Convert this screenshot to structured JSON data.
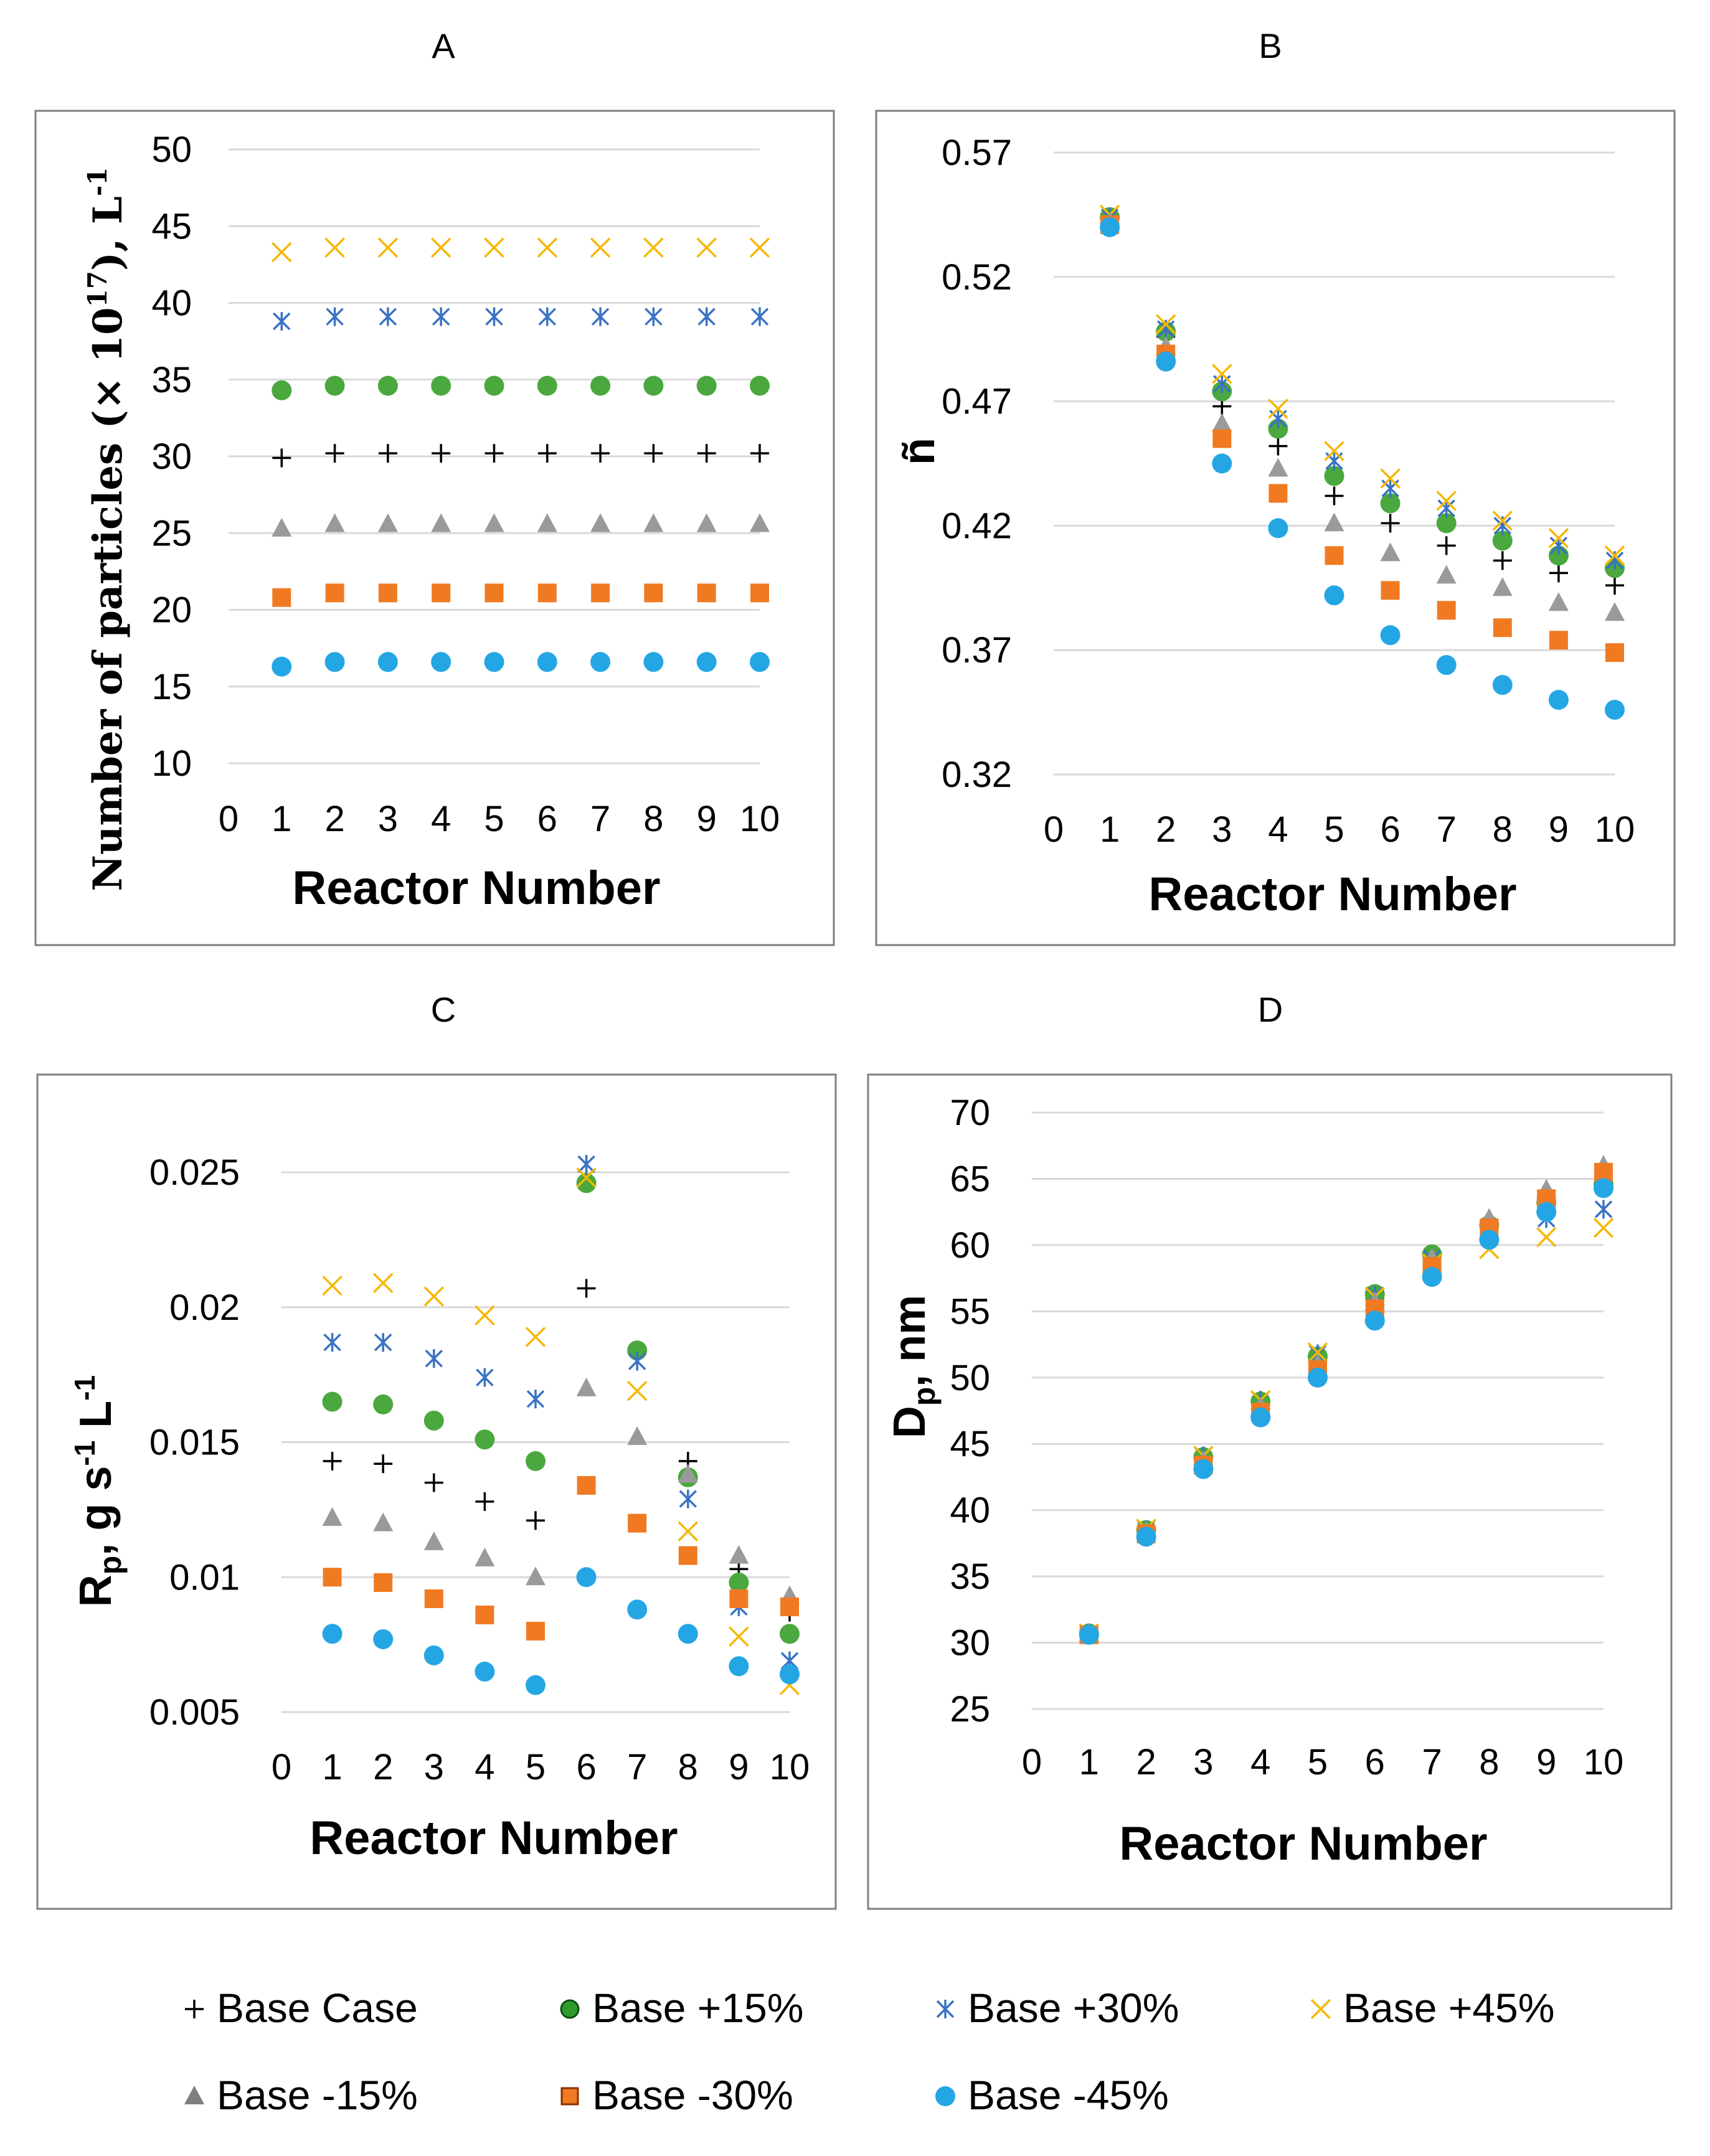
{
  "series_styles": [
    {
      "name": "Base Case",
      "marker": "plus",
      "color": "#000000"
    },
    {
      "name": "Base +15%",
      "marker": "circle",
      "color": "#4aa83e"
    },
    {
      "name": "Base +30%",
      "marker": "star",
      "color": "#3a72c4"
    },
    {
      "name": "Base +45%",
      "marker": "x",
      "color": "#f5b800"
    },
    {
      "name": "Base -15%",
      "marker": "triangle",
      "color": "#9a9a9a"
    },
    {
      "name": "Base -30%",
      "marker": "square",
      "color": "#f07a22"
    },
    {
      "name": "Base -45%",
      "marker": "circle",
      "color": "#25a6e4"
    }
  ],
  "legend": {
    "items": [
      {
        "label": "Base Case",
        "marker": "plus",
        "color": "#000000"
      },
      {
        "label": "Base +15%",
        "marker": "circle-dark",
        "color": "#2e9a2b"
      },
      {
        "label": "Base +30%",
        "marker": "star",
        "color": "#3a72c4"
      },
      {
        "label": "Base +45%",
        "marker": "x",
        "color": "#f5b800"
      },
      {
        "label": "Base -15%",
        "marker": "triangle",
        "color": "#7f7f7f"
      },
      {
        "label": "Base -30%",
        "marker": "square-outlined",
        "color": "#f07a22"
      },
      {
        "label": "Base -45%",
        "marker": "circle",
        "color": "#25a6e4"
      }
    ]
  },
  "chart_data": [
    {
      "id": "A",
      "type": "scatter",
      "title": "A",
      "xlabel": "Reactor Number",
      "ylabel_parts": {
        "main": "Number of particles (× 10",
        "sup": "17",
        "tail": "), L",
        "sup2": "-1"
      },
      "xlim": [
        0,
        10
      ],
      "ylim": [
        10,
        50
      ],
      "xticks": [
        0,
        1,
        2,
        3,
        4,
        5,
        6,
        7,
        8,
        9,
        10
      ],
      "yticks": [
        10,
        15,
        20,
        25,
        30,
        35,
        40,
        45,
        50
      ],
      "x": [
        1,
        2,
        3,
        4,
        5,
        6,
        7,
        8,
        9,
        10
      ],
      "series": [
        {
          "name": "Base Case",
          "values": [
            29.9,
            30.2,
            30.2,
            30.2,
            30.2,
            30.2,
            30.2,
            30.2,
            30.2,
            30.2
          ]
        },
        {
          "name": "Base +15%",
          "values": [
            34.3,
            34.6,
            34.6,
            34.6,
            34.6,
            34.6,
            34.6,
            34.6,
            34.6,
            34.6
          ]
        },
        {
          "name": "Base +30%",
          "values": [
            38.8,
            39.1,
            39.1,
            39.1,
            39.1,
            39.1,
            39.1,
            39.1,
            39.1,
            39.1
          ]
        },
        {
          "name": "Base +45%",
          "values": [
            43.3,
            43.6,
            43.6,
            43.6,
            43.6,
            43.6,
            43.6,
            43.6,
            43.6,
            43.6
          ]
        },
        {
          "name": "Base -15%",
          "values": [
            25.3,
            25.6,
            25.6,
            25.6,
            25.6,
            25.6,
            25.6,
            25.6,
            25.6,
            25.6
          ]
        },
        {
          "name": "Base -30%",
          "values": [
            20.8,
            21.1,
            21.1,
            21.1,
            21.1,
            21.1,
            21.1,
            21.1,
            21.1,
            21.1
          ]
        },
        {
          "name": "Base -45%",
          "values": [
            16.3,
            16.6,
            16.6,
            16.6,
            16.6,
            16.6,
            16.6,
            16.6,
            16.6,
            16.6
          ]
        }
      ]
    },
    {
      "id": "B",
      "type": "scatter",
      "title": "B",
      "xlabel": "Reactor Number",
      "ylabel": "ñ",
      "xlim": [
        0,
        10
      ],
      "ylim": [
        0.32,
        0.57
      ],
      "xticks": [
        0,
        1,
        2,
        3,
        4,
        5,
        6,
        7,
        8,
        9,
        10
      ],
      "yticks": [
        0.32,
        0.37,
        0.42,
        0.47,
        0.52,
        0.57
      ],
      "x": [
        1,
        2,
        3,
        4,
        5,
        6,
        7,
        8,
        9,
        10
      ],
      "series": [
        {
          "name": "Base Case",
          "values": [
            0.543,
            0.496,
            0.468,
            0.452,
            0.432,
            0.421,
            0.412,
            0.406,
            0.401,
            0.396
          ]
        },
        {
          "name": "Base +15%",
          "values": [
            0.544,
            0.498,
            0.474,
            0.459,
            0.44,
            0.429,
            0.421,
            0.414,
            0.408,
            0.403
          ]
        },
        {
          "name": "Base +30%",
          "values": [
            0.544,
            0.499,
            0.477,
            0.463,
            0.446,
            0.435,
            0.427,
            0.42,
            0.412,
            0.406
          ]
        },
        {
          "name": "Base +45%",
          "values": [
            0.545,
            0.501,
            0.481,
            0.467,
            0.45,
            0.439,
            0.43,
            0.422,
            0.415,
            0.408
          ]
        },
        {
          "name": "Base -15%",
          "values": [
            0.542,
            0.492,
            0.461,
            0.443,
            0.421,
            0.409,
            0.4,
            0.395,
            0.389,
            0.385
          ]
        },
        {
          "name": "Base -30%",
          "values": [
            0.541,
            0.489,
            0.455,
            0.433,
            0.408,
            0.394,
            0.386,
            0.379,
            0.374,
            0.369
          ]
        },
        {
          "name": "Base -45%",
          "values": [
            0.54,
            0.486,
            0.445,
            0.419,
            0.392,
            0.376,
            0.364,
            0.356,
            0.35,
            0.346
          ]
        }
      ]
    },
    {
      "id": "C",
      "type": "scatter",
      "title": "C",
      "xlabel": "Reactor Number",
      "ylabel_parts": {
        "main": "R",
        "sub": "p",
        "mid": ", g s",
        "sup": "-1",
        "tail": " L",
        "sup2": "-1"
      },
      "xlim": [
        0,
        10
      ],
      "ylim": [
        0.005,
        0.025
      ],
      "xticks": [
        0,
        1,
        2,
        3,
        4,
        5,
        6,
        7,
        8,
        9,
        10
      ],
      "yticks": [
        0.005,
        0.01,
        0.015,
        0.02,
        0.025
      ],
      "x": [
        1,
        2,
        3,
        4,
        5,
        6,
        7,
        8,
        9,
        10
      ],
      "series": [
        {
          "name": "Base Case",
          "values": [
            0.0143,
            0.0142,
            0.0135,
            0.0128,
            0.0121,
            0.0207,
            0.0184,
            0.0143,
            0.0103,
            0.0087
          ]
        },
        {
          "name": "Base +15%",
          "values": [
            0.0165,
            0.0164,
            0.0158,
            0.0151,
            0.0143,
            0.0246,
            0.0184,
            0.0137,
            0.0098,
            0.0079
          ]
        },
        {
          "name": "Base +30%",
          "values": [
            0.0187,
            0.0187,
            0.0181,
            0.0174,
            0.0166,
            0.0253,
            0.018,
            0.0129,
            0.0089,
            0.0069
          ]
        },
        {
          "name": "Base +45%",
          "values": [
            0.0208,
            0.0209,
            0.0204,
            0.0197,
            0.0189,
            0.0248,
            0.0169,
            0.0117,
            0.0078,
            0.006
          ]
        },
        {
          "name": "Base -15%",
          "values": [
            0.0122,
            0.012,
            0.0113,
            0.0107,
            0.01,
            0.017,
            0.0152,
            0.0138,
            0.0108,
            0.0093
          ]
        },
        {
          "name": "Base -30%",
          "values": [
            0.01,
            0.0098,
            0.0092,
            0.0086,
            0.008,
            0.0134,
            0.012,
            0.0108,
            0.0092,
            0.0089
          ]
        },
        {
          "name": "Base -45%",
          "values": [
            0.0079,
            0.0077,
            0.0071,
            0.0065,
            0.006,
            0.01,
            0.0088,
            0.0079,
            0.0067,
            0.0064
          ]
        }
      ]
    },
    {
      "id": "D",
      "type": "scatter",
      "title": "D",
      "xlabel": "Reactor Number",
      "ylabel_parts": {
        "main": "D",
        "sub": "p",
        "tail": ", nm"
      },
      "xlim": [
        0,
        10
      ],
      "ylim": [
        25,
        70
      ],
      "xticks": [
        0,
        1,
        2,
        3,
        4,
        5,
        6,
        7,
        8,
        9,
        10
      ],
      "yticks": [
        25,
        30,
        35,
        40,
        45,
        50,
        55,
        60,
        65,
        70
      ],
      "x": [
        1,
        2,
        3,
        4,
        5,
        6,
        7,
        8,
        9,
        10
      ],
      "series": [
        {
          "name": "Base Case",
          "values": [
            30.7,
            38.4,
            43.8,
            48.0,
            51.3,
            56.0,
            59.1,
            61.6,
            63.5,
            65.2
          ]
        },
        {
          "name": "Base +15%",
          "values": [
            30.7,
            38.5,
            44.0,
            48.2,
            51.6,
            56.3,
            59.3,
            61.5,
            63.2,
            64.6
          ]
        },
        {
          "name": "Base +30%",
          "values": [
            30.7,
            38.5,
            44.1,
            48.3,
            51.8,
            56.2,
            59.0,
            60.8,
            62.0,
            62.7
          ]
        },
        {
          "name": "Base +45%",
          "values": [
            30.7,
            38.6,
            44.1,
            48.3,
            51.9,
            56.1,
            58.6,
            59.7,
            60.6,
            61.3
          ]
        },
        {
          "name": "Base -15%",
          "values": [
            30.7,
            38.4,
            43.7,
            47.8,
            51.0,
            55.7,
            59.0,
            62.0,
            64.2,
            66.0
          ]
        },
        {
          "name": "Base -30%",
          "values": [
            30.6,
            38.2,
            43.4,
            47.4,
            50.6,
            55.2,
            58.4,
            61.3,
            63.5,
            65.5
          ]
        },
        {
          "name": "Base -45%",
          "values": [
            30.6,
            38.0,
            43.1,
            47.0,
            50.0,
            54.3,
            57.6,
            60.4,
            62.5,
            64.3
          ]
        }
      ]
    }
  ]
}
